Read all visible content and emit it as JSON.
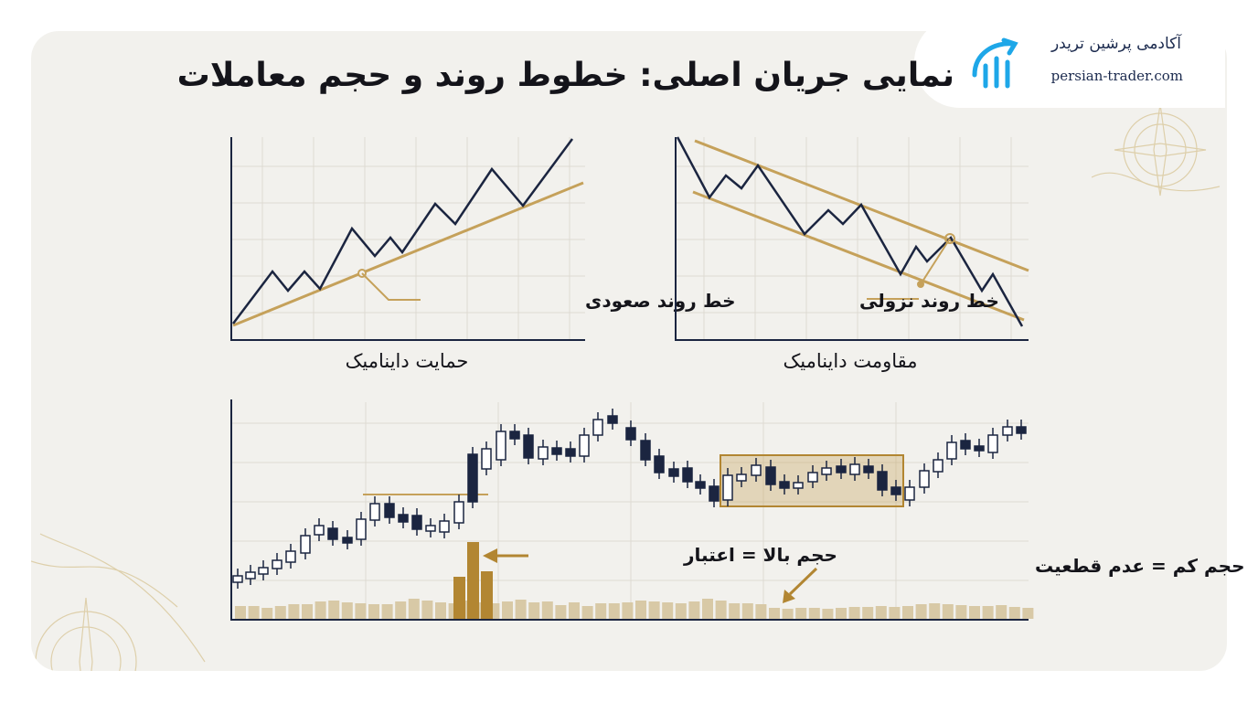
{
  "title": "نمایی جریان اصلی: خطوط روند و حجم معاملات",
  "logo": {
    "name": "آکادمی پرشین تریدر",
    "url": "persian-trader.com",
    "icon": "bull-chart-icon"
  },
  "colors": {
    "background": "#f2f1ed",
    "line": "#1b2540",
    "gold": "#c5a15a",
    "gold_dark": "#b28632",
    "grid": "#dedbd2",
    "text": "#14141a"
  },
  "uptrend_panel": {
    "trendline_label": "خط روند صعودی",
    "caption": "حمایت داینامیک",
    "icon": "uptrend-chart"
  },
  "downtrend_panel": {
    "trendline_label": "خط روند نزولی",
    "caption": "مقاومت داینامیک",
    "icon": "downtrend-chart"
  },
  "volume_panel": {
    "high_volume_label": "حجم بالا = اعتبار",
    "low_volume_label": "حجم کم = عدم قطعیت"
  }
}
